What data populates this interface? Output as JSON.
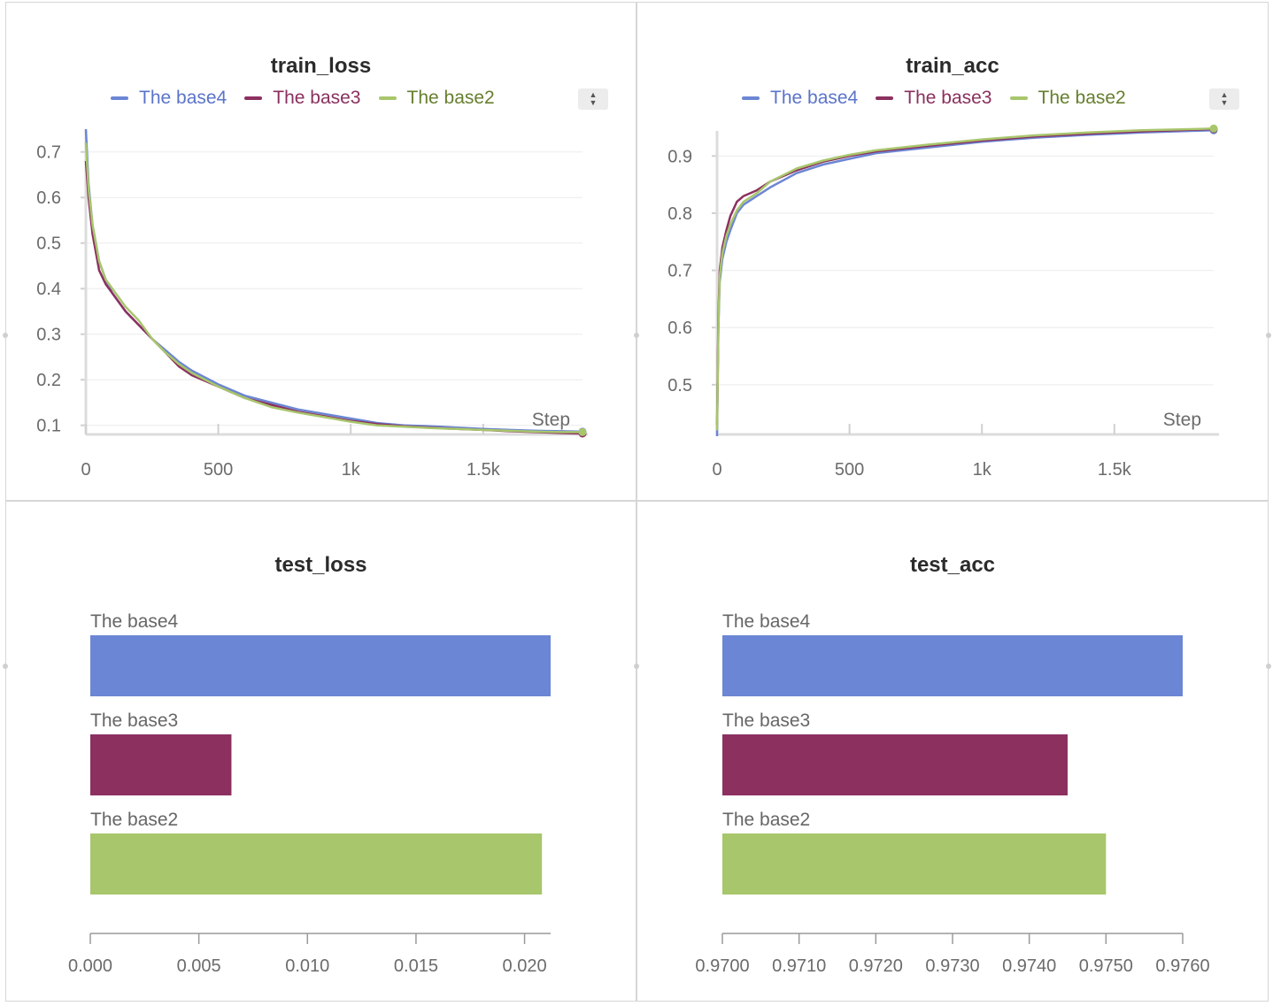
{
  "series_colors": {
    "The base4": "#6b86d4",
    "The base3": "#8c3060",
    "The base2": "#a8c66c"
  },
  "legend_text_colors": {
    "The base4": "#5b74c9",
    "The base3": "#8a2f5e",
    "The base2": "#667f2e"
  },
  "icons": {
    "sort": "sort-updown-icon"
  },
  "chart_data": [
    {
      "type": "line",
      "title": "train_loss",
      "xlabel": "Step",
      "ylabel": "",
      "legend": [
        "The base4",
        "The base3",
        "The base2"
      ],
      "xlim": [
        0,
        1875
      ],
      "ylim": [
        0.08,
        0.75
      ],
      "xticks": [
        0,
        500,
        1000,
        1500
      ],
      "xtick_labels": [
        "0",
        "500",
        "1k",
        "1.5k"
      ],
      "yticks": [
        0.1,
        0.2,
        0.3,
        0.4,
        0.5,
        0.6,
        0.7
      ],
      "ytick_labels": [
        "0.1",
        "0.2",
        "0.3",
        "0.4",
        "0.5",
        "0.6",
        "0.7"
      ],
      "grid": true,
      "series": [
        {
          "name": "The base4",
          "x": [
            0,
            10,
            25,
            50,
            75,
            100,
            150,
            200,
            250,
            300,
            350,
            400,
            500,
            600,
            700,
            800,
            900,
            1000,
            1100,
            1200,
            1300,
            1400,
            1500,
            1600,
            1700,
            1800,
            1875
          ],
          "y": [
            0.75,
            0.63,
            0.54,
            0.46,
            0.42,
            0.39,
            0.35,
            0.32,
            0.29,
            0.265,
            0.24,
            0.22,
            0.19,
            0.165,
            0.15,
            0.135,
            0.125,
            0.115,
            0.105,
            0.1,
            0.098,
            0.095,
            0.092,
            0.09,
            0.088,
            0.087,
            0.086
          ]
        },
        {
          "name": "The base3",
          "x": [
            0,
            10,
            25,
            50,
            75,
            100,
            150,
            200,
            250,
            300,
            350,
            400,
            500,
            600,
            700,
            800,
            900,
            1000,
            1100,
            1200,
            1300,
            1400,
            1500,
            1600,
            1700,
            1800,
            1875
          ],
          "y": [
            0.68,
            0.6,
            0.52,
            0.44,
            0.41,
            0.39,
            0.35,
            0.32,
            0.29,
            0.26,
            0.23,
            0.21,
            0.185,
            0.16,
            0.145,
            0.13,
            0.12,
            0.11,
            0.103,
            0.098,
            0.095,
            0.092,
            0.09,
            0.087,
            0.085,
            0.083,
            0.082
          ]
        },
        {
          "name": "The base2",
          "x": [
            0,
            10,
            25,
            50,
            75,
            100,
            150,
            200,
            250,
            300,
            350,
            400,
            500,
            600,
            700,
            800,
            900,
            1000,
            1100,
            1200,
            1300,
            1400,
            1500,
            1600,
            1700,
            1800,
            1875
          ],
          "y": [
            0.72,
            0.62,
            0.54,
            0.46,
            0.42,
            0.4,
            0.36,
            0.33,
            0.29,
            0.26,
            0.235,
            0.215,
            0.185,
            0.16,
            0.14,
            0.128,
            0.118,
            0.108,
            0.1,
            0.097,
            0.094,
            0.092,
            0.09,
            0.088,
            0.086,
            0.085,
            0.085
          ]
        }
      ]
    },
    {
      "type": "line",
      "title": "train_acc",
      "xlabel": "Step",
      "ylabel": "",
      "legend": [
        "The base4",
        "The base3",
        "The base2"
      ],
      "xlim": [
        0,
        1875
      ],
      "ylim": [
        0.41,
        0.95
      ],
      "xticks": [
        0,
        500,
        1000,
        1500
      ],
      "xtick_labels": [
        "0",
        "500",
        "1k",
        "1.5k"
      ],
      "yticks": [
        0.5,
        0.6,
        0.7,
        0.8,
        0.9
      ],
      "ytick_labels": [
        "0.5",
        "0.6",
        "0.7",
        "0.8",
        "0.9"
      ],
      "grid": true,
      "series": [
        {
          "name": "The base4",
          "x": [
            0,
            5,
            10,
            20,
            35,
            50,
            75,
            100,
            150,
            200,
            300,
            400,
            500,
            600,
            800,
            1000,
            1200,
            1400,
            1600,
            1800,
            1875
          ],
          "y": [
            0.41,
            0.6,
            0.68,
            0.72,
            0.75,
            0.77,
            0.8,
            0.815,
            0.83,
            0.845,
            0.87,
            0.885,
            0.895,
            0.905,
            0.915,
            0.925,
            0.932,
            0.937,
            0.941,
            0.944,
            0.945
          ]
        },
        {
          "name": "The base3",
          "x": [
            0,
            5,
            10,
            20,
            35,
            50,
            75,
            100,
            150,
            200,
            300,
            400,
            500,
            600,
            800,
            1000,
            1200,
            1400,
            1600,
            1800,
            1875
          ],
          "y": [
            0.43,
            0.62,
            0.7,
            0.74,
            0.77,
            0.795,
            0.82,
            0.83,
            0.84,
            0.855,
            0.875,
            0.89,
            0.9,
            0.908,
            0.918,
            0.927,
            0.934,
            0.939,
            0.943,
            0.946,
            0.947
          ]
        },
        {
          "name": "The base2",
          "x": [
            0,
            5,
            10,
            20,
            35,
            50,
            75,
            100,
            150,
            200,
            300,
            400,
            500,
            600,
            800,
            1000,
            1200,
            1400,
            1600,
            1800,
            1875
          ],
          "y": [
            0.42,
            0.6,
            0.69,
            0.73,
            0.76,
            0.78,
            0.805,
            0.82,
            0.835,
            0.855,
            0.878,
            0.892,
            0.902,
            0.91,
            0.92,
            0.929,
            0.936,
            0.941,
            0.945,
            0.947,
            0.948
          ]
        }
      ]
    },
    {
      "type": "bar",
      "orientation": "horizontal",
      "title": "test_loss",
      "categories": [
        "The base4",
        "The base3",
        "The base2"
      ],
      "values": [
        0.0212,
        0.0065,
        0.0208
      ],
      "xlim": [
        0,
        0.0212
      ],
      "xticks": [
        0,
        0.005,
        0.01,
        0.015,
        0.02
      ],
      "xtick_labels": [
        "0.000",
        "0.005",
        "0.010",
        "0.015",
        "0.020"
      ],
      "grid": false
    },
    {
      "type": "bar",
      "orientation": "horizontal",
      "title": "test_acc",
      "categories": [
        "The base4",
        "The base3",
        "The base2"
      ],
      "values": [
        0.976,
        0.9745,
        0.975
      ],
      "xlim": [
        0.97,
        0.976
      ],
      "xticks": [
        0.97,
        0.971,
        0.972,
        0.973,
        0.974,
        0.975,
        0.976
      ],
      "xtick_labels": [
        "0.9700",
        "0.9710",
        "0.9720",
        "0.9730",
        "0.9740",
        "0.9750",
        "0.9760"
      ],
      "grid": false
    }
  ]
}
